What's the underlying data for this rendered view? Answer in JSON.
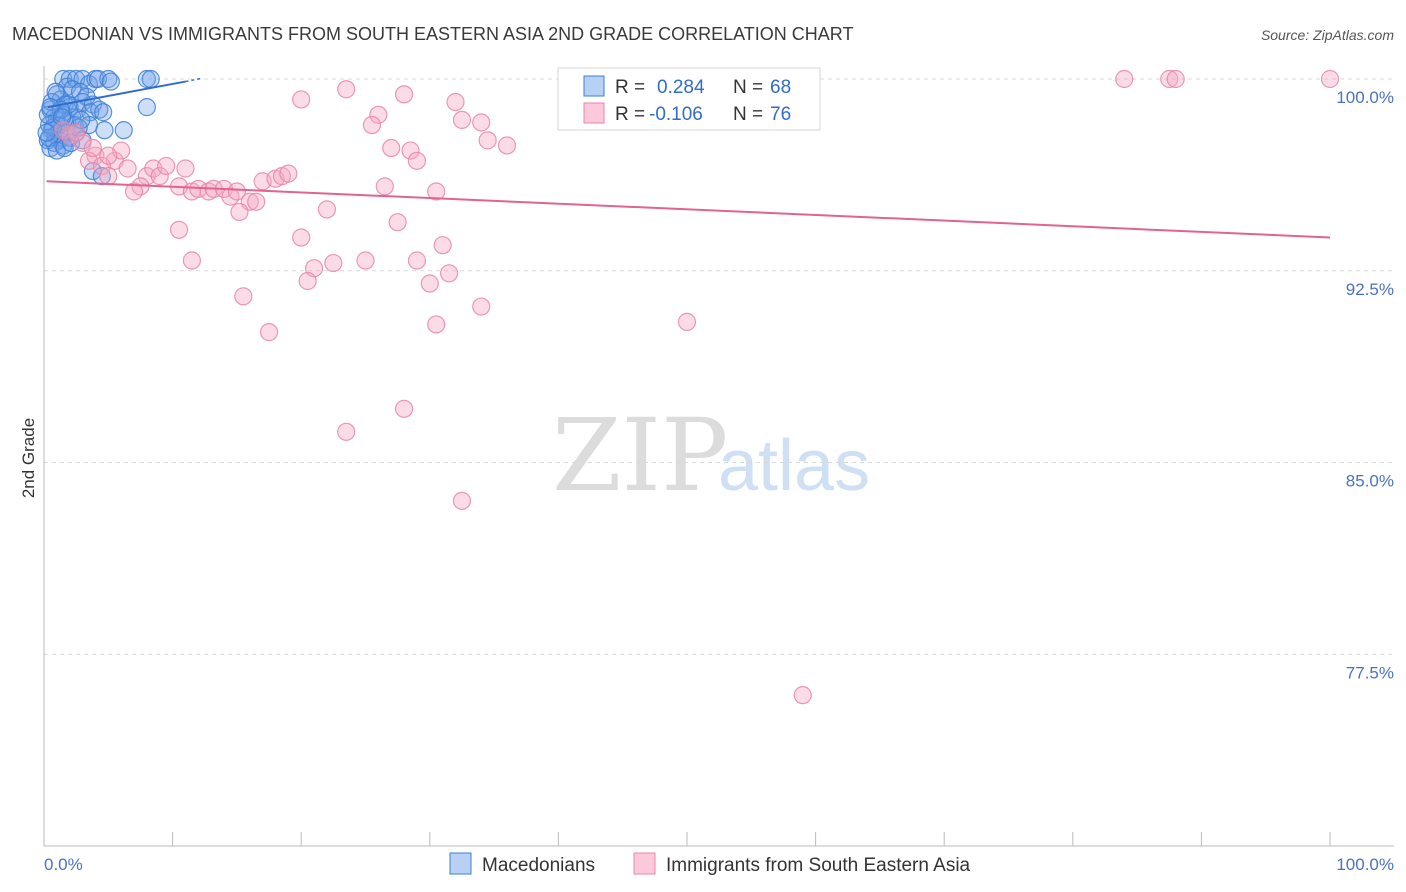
{
  "chart_data": {
    "type": "scatter",
    "title": "MACEDONIAN VS IMMIGRANTS FROM SOUTH EASTERN ASIA 2ND GRADE CORRELATION CHART",
    "source": "Source: ZipAtlas.com",
    "ylabel": "2nd Grade",
    "xlim": [
      0,
      100
    ],
    "ylim": [
      70,
      101.5
    ],
    "y_ticks": [
      {
        "value": 100,
        "label": "100.0%"
      },
      {
        "value": 92.5,
        "label": "92.5%"
      },
      {
        "value": 85,
        "label": "85.0%"
      },
      {
        "value": 77.5,
        "label": "77.5%"
      }
    ],
    "x_labels": {
      "left": "0.0%",
      "right": "100.0%"
    },
    "watermark": {
      "zip": "ZIP",
      "atlas": "atlas"
    },
    "legend": {
      "r_label": "R =",
      "n_label": "N =",
      "entries": [
        {
          "r": "0.284",
          "n": "68",
          "color": "#6fa0e8"
        },
        {
          "r": "-0.106",
          "n": "76",
          "color": "#f08fb0"
        }
      ]
    },
    "series": [
      {
        "name": "Macedonians",
        "color": "#6fa0e8",
        "stroke": "#3c7fd6",
        "trend": {
          "x": [
            0.3,
            11
          ],
          "y": [
            98.9,
            99.9
          ],
          "color": "#2f6ccc"
        },
        "points": [
          [
            1.5,
            100
          ],
          [
            2,
            100
          ],
          [
            1.8,
            99.7
          ],
          [
            2.5,
            100
          ],
          [
            3,
            100
          ],
          [
            3.5,
            99.8
          ],
          [
            4,
            100
          ],
          [
            4.2,
            100
          ],
          [
            5,
            100
          ],
          [
            5.2,
            99.9
          ],
          [
            8,
            100
          ],
          [
            8.3,
            100
          ],
          [
            2.2,
            99.6
          ],
          [
            2.8,
            99.5
          ],
          [
            3.3,
            99.3
          ],
          [
            1,
            99.4
          ],
          [
            1.3,
            99.2
          ],
          [
            1.6,
            99
          ],
          [
            2,
            98.9
          ],
          [
            2.6,
            98.8
          ],
          [
            3,
            99.1
          ],
          [
            3.8,
            99
          ],
          [
            3.6,
            98.7
          ],
          [
            4.3,
            98.8
          ],
          [
            0.5,
            98.8
          ],
          [
            0.8,
            98.5
          ],
          [
            1,
            98.4
          ],
          [
            1.2,
            98.2
          ],
          [
            1.5,
            98.6
          ],
          [
            1.8,
            98.3
          ],
          [
            2.2,
            98.5
          ],
          [
            2.4,
            98.2
          ],
          [
            0.6,
            98
          ],
          [
            0.9,
            97.8
          ],
          [
            1.1,
            97.9
          ],
          [
            1.4,
            97.7
          ],
          [
            1.7,
            97.9
          ],
          [
            0.3,
            97.6
          ],
          [
            0.4,
            98.2
          ],
          [
            0.7,
            98.1
          ],
          [
            1.2,
            97.6
          ],
          [
            2,
            97.7
          ],
          [
            2.5,
            97.9
          ],
          [
            0.5,
            97.3
          ],
          [
            0.8,
            97.5
          ],
          [
            1.5,
            97.4
          ],
          [
            0.4,
            97.7
          ],
          [
            3,
            97.6
          ],
          [
            3.5,
            98.2
          ],
          [
            4.7,
            98
          ],
          [
            6.2,
            98
          ],
          [
            8,
            98.9
          ],
          [
            3.8,
            96.4
          ],
          [
            4.5,
            96.2
          ],
          [
            0.3,
            98.6
          ],
          [
            0.6,
            99.1
          ],
          [
            1.9,
            99
          ],
          [
            2.7,
            98.1
          ],
          [
            1,
            97.2
          ],
          [
            0.2,
            97.9
          ],
          [
            1.3,
            98.8
          ],
          [
            2.9,
            98.4
          ],
          [
            0.9,
            99.5
          ],
          [
            4.6,
            98.7
          ],
          [
            1.6,
            97.3
          ],
          [
            0.5,
            98.9
          ],
          [
            2.1,
            97.5
          ],
          [
            1.4,
            98.5
          ]
        ]
      },
      {
        "name": "Immigrants from South Eastern Asia",
        "color": "#f4a7c1",
        "stroke": "#e886a8",
        "trend": {
          "x": [
            0.2,
            100
          ],
          "y": [
            96,
            93.8
          ],
          "color": "#e0648f"
        },
        "points": [
          [
            100,
            100
          ],
          [
            84,
            100
          ],
          [
            87.5,
            100
          ],
          [
            88,
            100
          ],
          [
            23.5,
            99.6
          ],
          [
            28,
            99.4
          ],
          [
            20,
            99.2
          ],
          [
            32,
            99.1
          ],
          [
            26,
            98.6
          ],
          [
            32.5,
            98.4
          ],
          [
            25.5,
            98.2
          ],
          [
            34,
            98.3
          ],
          [
            34.5,
            97.6
          ],
          [
            27,
            97.3
          ],
          [
            28.5,
            97.2
          ],
          [
            36,
            97.4
          ],
          [
            29,
            96.8
          ],
          [
            1.5,
            98
          ],
          [
            2,
            97.8
          ],
          [
            3,
            97.5
          ],
          [
            4,
            97
          ],
          [
            5.5,
            96.8
          ],
          [
            6.5,
            96.5
          ],
          [
            3.5,
            96.8
          ],
          [
            4.5,
            96.6
          ],
          [
            5,
            96.2
          ],
          [
            8,
            96.2
          ],
          [
            8.5,
            96.5
          ],
          [
            9,
            96.2
          ],
          [
            9.5,
            96.6
          ],
          [
            7.5,
            95.8
          ],
          [
            7,
            95.6
          ],
          [
            10.5,
            95.8
          ],
          [
            11.5,
            95.6
          ],
          [
            12,
            95.7
          ],
          [
            12.8,
            95.6
          ],
          [
            13.2,
            95.7
          ],
          [
            14,
            95.7
          ],
          [
            14.5,
            95.4
          ],
          [
            15,
            95.6
          ],
          [
            16,
            95.2
          ],
          [
            16.5,
            95.2
          ],
          [
            17,
            96
          ],
          [
            18,
            96.1
          ],
          [
            18.5,
            96.2
          ],
          [
            26.5,
            95.8
          ],
          [
            30.5,
            95.6
          ],
          [
            22,
            94.9
          ],
          [
            15.2,
            94.8
          ],
          [
            27.5,
            94.4
          ],
          [
            10.5,
            94.1
          ],
          [
            20,
            93.8
          ],
          [
            31,
            93.5
          ],
          [
            11.5,
            92.9
          ],
          [
            21,
            92.6
          ],
          [
            22.5,
            92.8
          ],
          [
            25,
            92.9
          ],
          [
            29,
            92.9
          ],
          [
            31.5,
            92.4
          ],
          [
            20.5,
            92.1
          ],
          [
            30,
            92
          ],
          [
            15.5,
            91.5
          ],
          [
            34,
            91.1
          ],
          [
            17.5,
            90.1
          ],
          [
            30.5,
            90.4
          ],
          [
            50,
            90.5
          ],
          [
            28,
            87.1
          ],
          [
            23.5,
            86.2
          ],
          [
            32.5,
            83.5
          ],
          [
            59,
            75.9
          ],
          [
            11,
            96.5
          ],
          [
            19,
            96.3
          ],
          [
            6,
            97.2
          ],
          [
            5,
            97
          ],
          [
            2.5,
            97.9
          ],
          [
            3.8,
            97.3
          ]
        ]
      }
    ]
  }
}
